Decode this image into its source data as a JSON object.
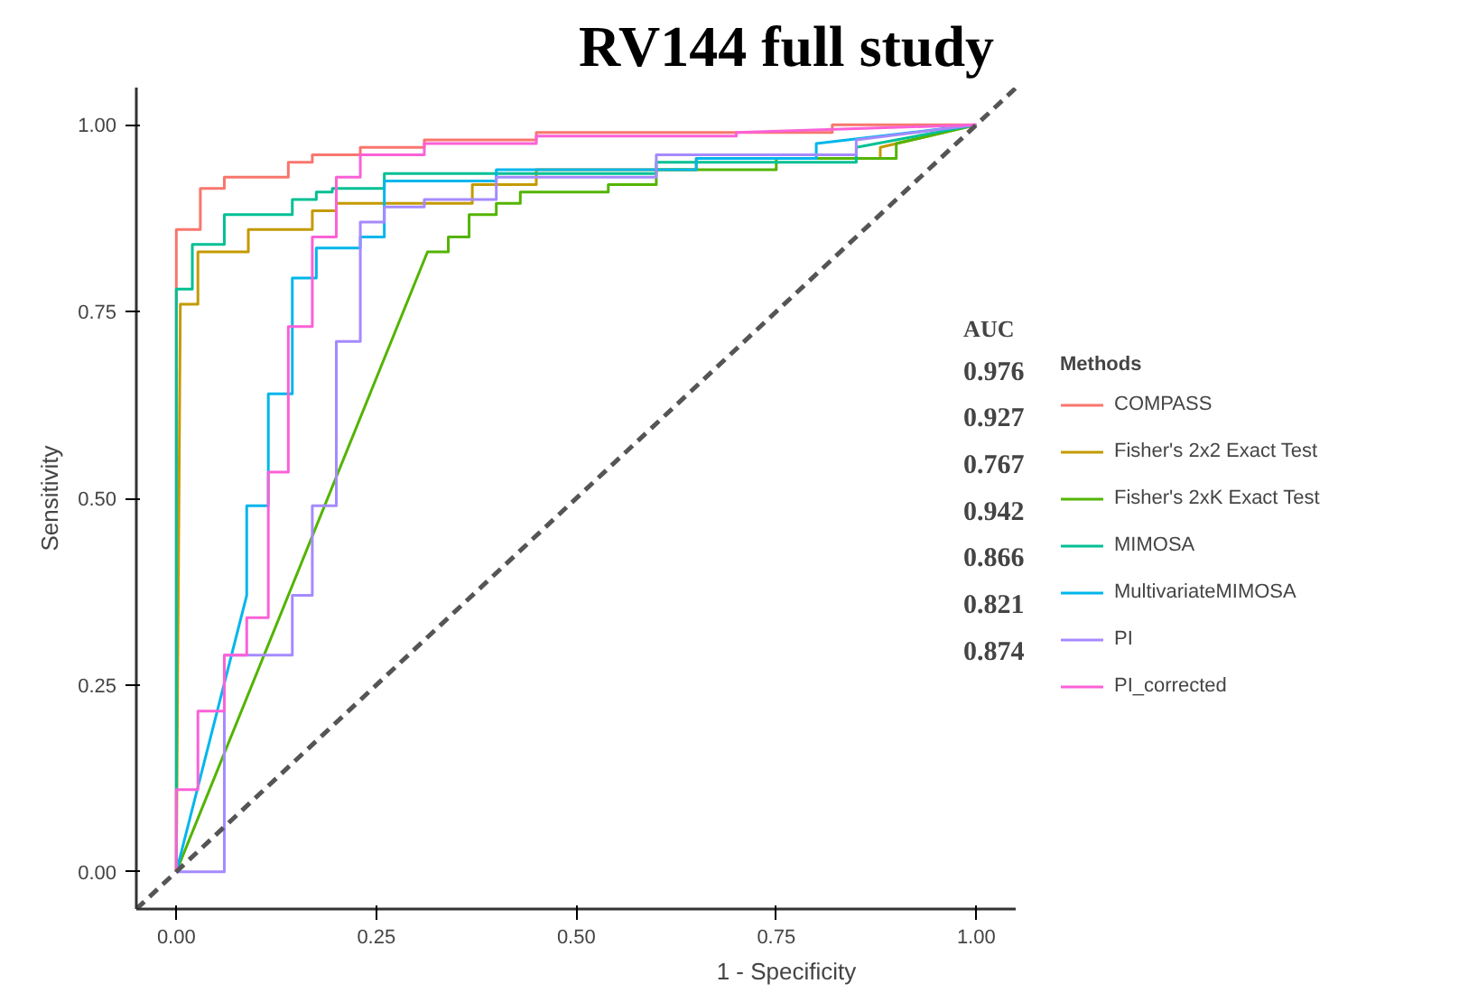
{
  "chart_data": {
    "type": "line",
    "title": "RV144 full study",
    "xlabel": "1 - Specificity",
    "ylabel": "Sensitivity",
    "legend_title": "Methods",
    "legend": "right",
    "grid": false,
    "line_style": "solid",
    "marker": "none",
    "xlim": [
      -0.05,
      1.05
    ],
    "ylim": [
      -0.05,
      1.05
    ],
    "xticks": [
      {
        "value": 0,
        "label": "0.00"
      },
      {
        "value": 0.25,
        "label": "0.25"
      },
      {
        "value": 0.5,
        "label": "0.50"
      },
      {
        "value": 0.75,
        "label": "0.75"
      },
      {
        "value": 1,
        "label": "1.00"
      }
    ],
    "yticks": [
      {
        "value": 0,
        "label": "0.00"
      },
      {
        "value": 0.25,
        "label": "0.25"
      },
      {
        "value": 0.5,
        "label": "0.50"
      },
      {
        "value": 0.75,
        "label": "0.75"
      },
      {
        "value": 1,
        "label": "1.00"
      }
    ],
    "annotations": [
      "AUC",
      "0.976",
      "0.927",
      "0.767",
      "0.942",
      "0.866",
      "0.821",
      "0.874"
    ],
    "series": [
      {
        "name": "COMPASS",
        "color": "#f8766d",
        "x": [
          0,
          0,
          0.03,
          0.03,
          0.06,
          0.06,
          0.14,
          0.14,
          0.17,
          0.17,
          0.23,
          0.23,
          0.31,
          0.31,
          0.45,
          0.45,
          0.82,
          0.82,
          1
        ],
        "values": [
          0,
          0.86,
          0.86,
          0.915,
          0.915,
          0.93,
          0.93,
          0.95,
          0.95,
          0.96,
          0.96,
          0.97,
          0.97,
          0.98,
          0.98,
          0.99,
          0.99,
          1,
          1
        ]
      },
      {
        "name": "Fisher's 2x2 Exact Test",
        "color": "#c49a00",
        "x": [
          0,
          0.005,
          0.027,
          0.027,
          0.09,
          0.09,
          0.17,
          0.17,
          0.2,
          0.2,
          0.37,
          0.37,
          0.45,
          0.45,
          0.65,
          0.65,
          0.88,
          0.88,
          1
        ],
        "values": [
          0,
          0.76,
          0.76,
          0.83,
          0.83,
          0.86,
          0.86,
          0.885,
          0.885,
          0.895,
          0.895,
          0.92,
          0.92,
          0.94,
          0.94,
          0.955,
          0.955,
          0.97,
          1
        ]
      },
      {
        "name": "Fisher's 2xK Exact Test",
        "color": "#53b400",
        "x": [
          0,
          0.314,
          0.34,
          0.34,
          0.366,
          0.366,
          0.4,
          0.4,
          0.43,
          0.43,
          0.54,
          0.54,
          0.6,
          0.6,
          0.75,
          0.75,
          0.9,
          0.9,
          1
        ],
        "values": [
          0,
          0.83,
          0.83,
          0.85,
          0.85,
          0.88,
          0.88,
          0.895,
          0.895,
          0.91,
          0.91,
          0.92,
          0.92,
          0.94,
          0.94,
          0.955,
          0.955,
          0.975,
          1
        ]
      },
      {
        "name": "MIMOSA",
        "color": "#00c094",
        "x": [
          0,
          0,
          0.02,
          0.02,
          0.06,
          0.06,
          0.145,
          0.145,
          0.175,
          0.175,
          0.195,
          0.195,
          0.26,
          0.26,
          0.6,
          0.6,
          0.85,
          0.85,
          1
        ],
        "values": [
          0,
          0.78,
          0.78,
          0.84,
          0.84,
          0.88,
          0.88,
          0.9,
          0.9,
          0.91,
          0.91,
          0.915,
          0.915,
          0.935,
          0.935,
          0.95,
          0.95,
          0.97,
          1
        ]
      },
      {
        "name": "MultivariateMIMOSA",
        "color": "#00b6eb",
        "x": [
          0,
          0.088,
          0.088,
          0.115,
          0.115,
          0.145,
          0.145,
          0.175,
          0.175,
          0.23,
          0.23,
          0.26,
          0.26,
          0.4,
          0.4,
          0.65,
          0.65,
          0.8,
          0.8,
          1
        ],
        "values": [
          0,
          0.37,
          0.49,
          0.49,
          0.64,
          0.64,
          0.795,
          0.795,
          0.835,
          0.835,
          0.85,
          0.85,
          0.925,
          0.925,
          0.94,
          0.94,
          0.955,
          0.955,
          0.975,
          1
        ]
      },
      {
        "name": "PI",
        "color": "#a58aff",
        "x": [
          0,
          0.06,
          0.06,
          0.145,
          0.145,
          0.17,
          0.17,
          0.2,
          0.2,
          0.23,
          0.23,
          0.26,
          0.26,
          0.31,
          0.31,
          0.4,
          0.4,
          0.6,
          0.6,
          0.85,
          0.85,
          1
        ],
        "values": [
          0,
          0,
          0.29,
          0.29,
          0.37,
          0.37,
          0.49,
          0.49,
          0.71,
          0.71,
          0.87,
          0.87,
          0.89,
          0.89,
          0.9,
          0.9,
          0.93,
          0.93,
          0.96,
          0.96,
          0.98,
          1
        ]
      },
      {
        "name": "PI_corrected",
        "color": "#fb61d7",
        "x": [
          0,
          0,
          0.027,
          0.027,
          0.06,
          0.06,
          0.088,
          0.088,
          0.115,
          0.115,
          0.14,
          0.14,
          0.17,
          0.17,
          0.2,
          0.2,
          0.23,
          0.23,
          0.31,
          0.31,
          0.45,
          0.45,
          0.7,
          0.7,
          1
        ],
        "values": [
          0,
          0.11,
          0.11,
          0.215,
          0.215,
          0.29,
          0.29,
          0.34,
          0.34,
          0.535,
          0.535,
          0.73,
          0.73,
          0.85,
          0.85,
          0.93,
          0.93,
          0.96,
          0.96,
          0.975,
          0.975,
          0.985,
          0.985,
          0.99,
          1
        ]
      },
      {
        "color": "#555555",
        "line_style": "dashed",
        "x": [
          -0.05,
          1.05
        ],
        "values": [
          -0.05,
          1.05
        ]
      }
    ]
  }
}
